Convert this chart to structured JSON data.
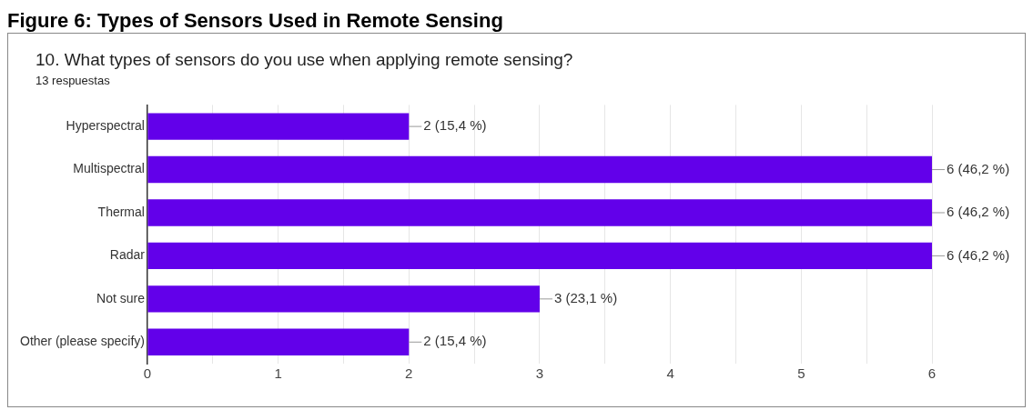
{
  "chart_data": {
    "type": "bar",
    "orientation": "horizontal",
    "title": "Figure 6: Types of Sensors Used in Remote Sensing",
    "subtitle": "10. What types of sensors do you use when applying remote sensing?",
    "annotations": [
      "13 respuestas"
    ],
    "categories": [
      "Hyperspectral",
      "Multispectral",
      "Thermal",
      "Radar",
      "Not sure",
      "Other (please specify)"
    ],
    "values": [
      2,
      6,
      6,
      6,
      3,
      2
    ],
    "color": "#6200ea",
    "value_labels": [
      "2 (15,4 %)",
      "6 (46,2 %)",
      "6 (46,2 %)",
      "6 (46,2 %)",
      "3 (23,1 %)",
      "2 (15,4 %)"
    ],
    "xlim": [
      0,
      6
    ],
    "xticks": [
      0,
      {
        "value": 0.5,
        "label": null
      },
      1,
      {
        "value": 1.5,
        "label": null
      },
      2,
      {
        "value": 2.5,
        "label": null
      },
      3,
      {
        "value": 3.5,
        "label": null
      },
      4,
      {
        "value": 4.5,
        "label": null
      },
      5,
      {
        "value": 5.5,
        "label": null
      },
      6
    ],
    "grid": "x",
    "legend": false
  }
}
